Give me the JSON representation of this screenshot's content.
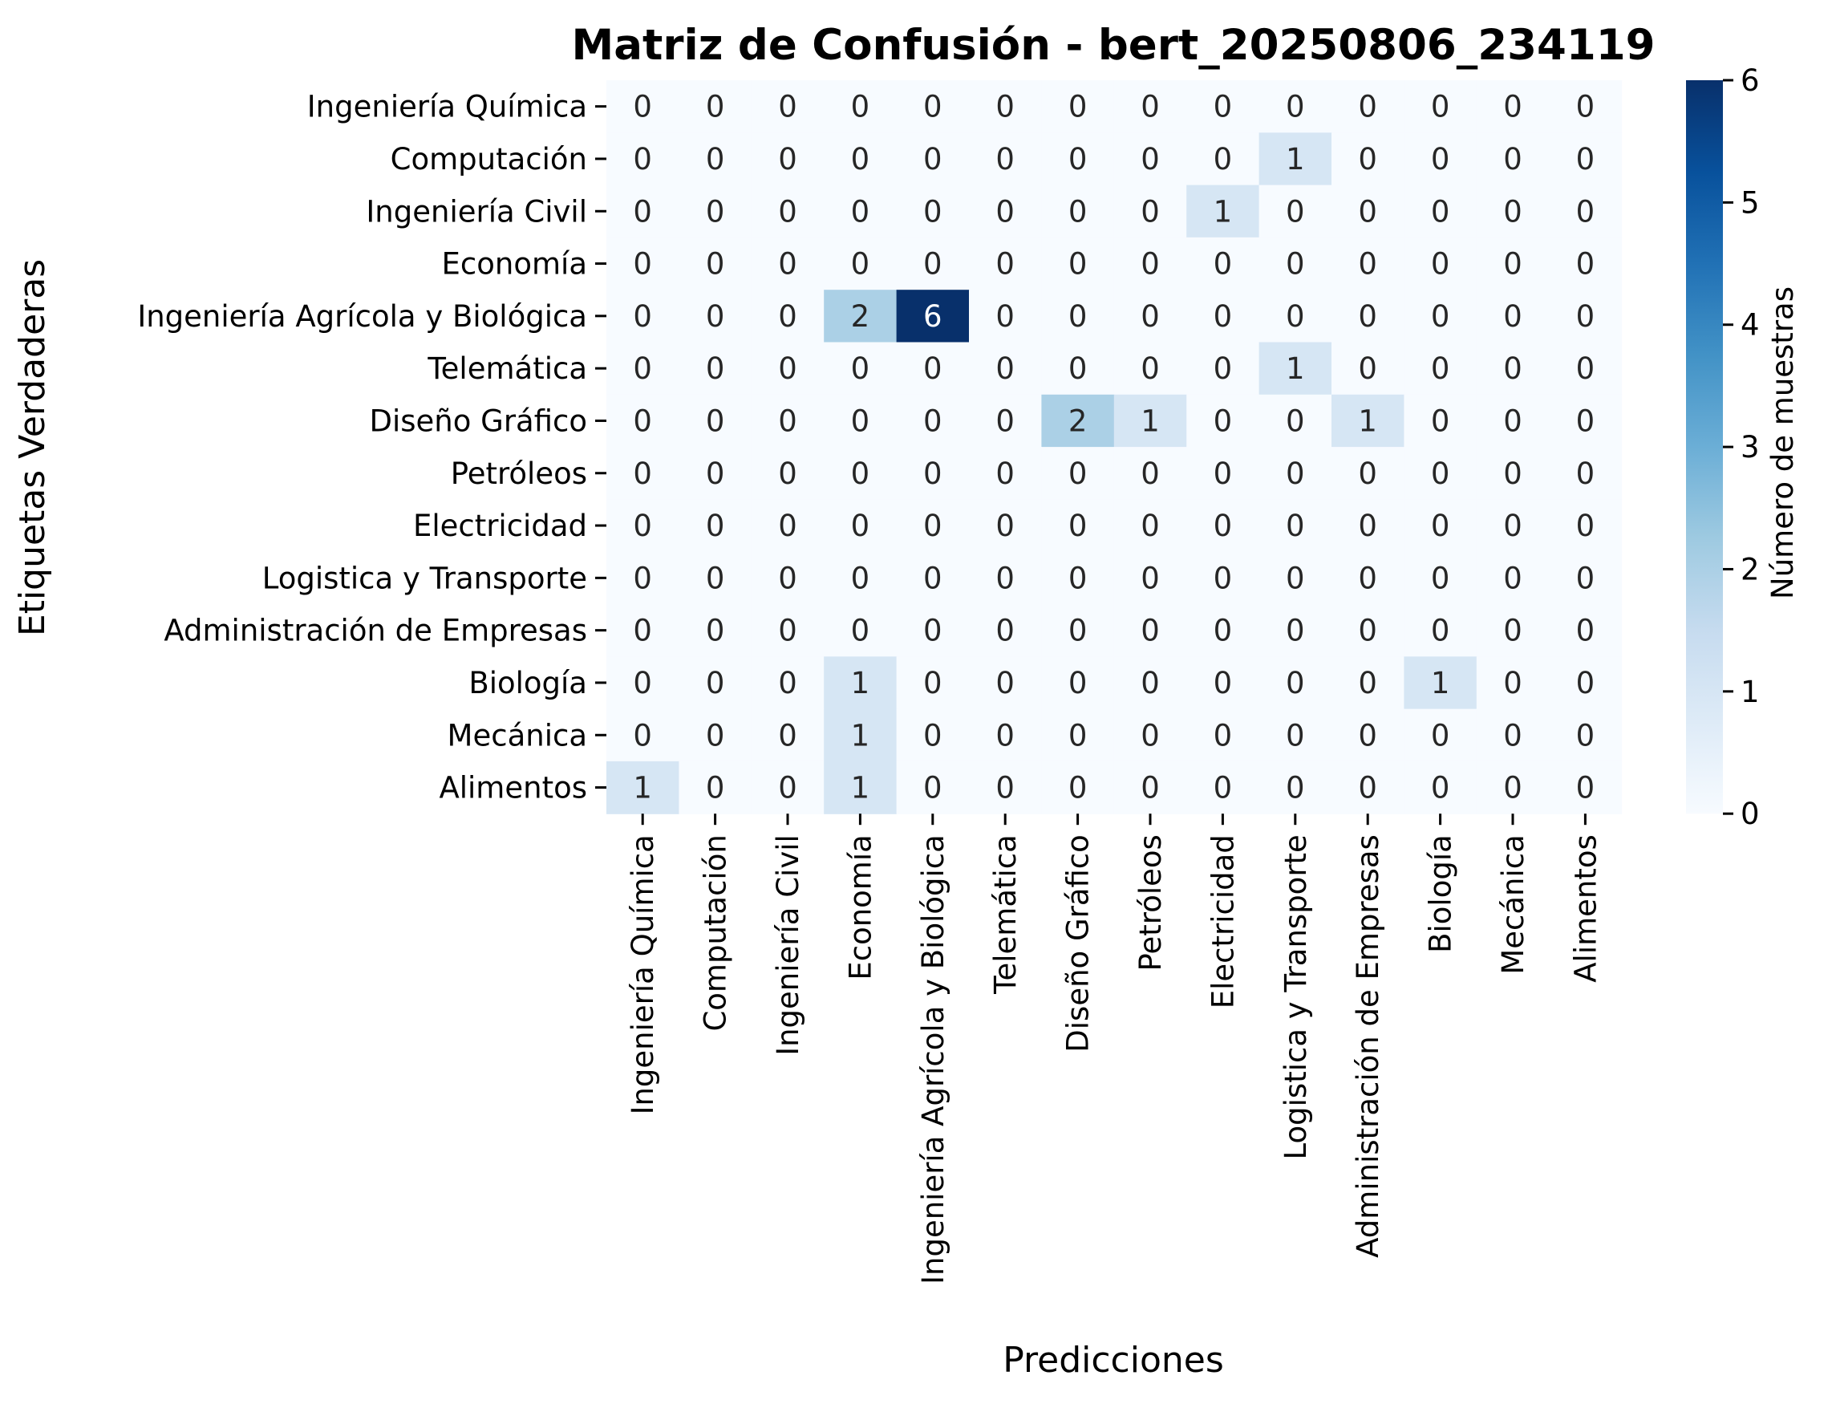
{
  "chart_data": {
    "type": "heatmap",
    "title": "Matriz de Confusión - bert_20250806_234119",
    "xlabel": "Predicciones",
    "ylabel": "Etiquetas Verdaderas",
    "colorbar_label": "Número de muestras",
    "colormap": "Blues",
    "colorbar_range": [
      0,
      6
    ],
    "colorbar_ticks": [
      "0",
      "1",
      "2",
      "3",
      "4",
      "5",
      "6"
    ],
    "row_labels": [
      "Ingeniería Química",
      "Computación",
      "Ingeniería  Civil",
      "Economía",
      "Ingeniería Agrícola y Biológica",
      "Telemática",
      "Diseño Gráfico",
      "Petróleos",
      "Electricidad",
      "Logistica y Transporte",
      "Administración de Empresas",
      "Biología",
      "Mecánica",
      "Alimentos"
    ],
    "col_labels": [
      "Ingeniería Química",
      "Computación",
      "Ingeniería  Civil",
      "Economía",
      "Ingeniería Agrícola y Biológica",
      "Telemática",
      "Diseño Gráfico",
      "Petróleos",
      "Electricidad",
      "Logistica y Transporte",
      "Administración de Empresas",
      "Biología",
      "Mecánica",
      "Alimentos"
    ],
    "matrix": [
      [
        0,
        0,
        0,
        0,
        0,
        0,
        0,
        0,
        0,
        0,
        0,
        0,
        0,
        0
      ],
      [
        0,
        0,
        0,
        0,
        0,
        0,
        0,
        0,
        0,
        1,
        0,
        0,
        0,
        0
      ],
      [
        0,
        0,
        0,
        0,
        0,
        0,
        0,
        0,
        1,
        0,
        0,
        0,
        0,
        0
      ],
      [
        0,
        0,
        0,
        0,
        0,
        0,
        0,
        0,
        0,
        0,
        0,
        0,
        0,
        0
      ],
      [
        0,
        0,
        0,
        2,
        6,
        0,
        0,
        0,
        0,
        0,
        0,
        0,
        0,
        0
      ],
      [
        0,
        0,
        0,
        0,
        0,
        0,
        0,
        0,
        0,
        1,
        0,
        0,
        0,
        0
      ],
      [
        0,
        0,
        0,
        0,
        0,
        0,
        2,
        1,
        0,
        0,
        1,
        0,
        0,
        0
      ],
      [
        0,
        0,
        0,
        0,
        0,
        0,
        0,
        0,
        0,
        0,
        0,
        0,
        0,
        0
      ],
      [
        0,
        0,
        0,
        0,
        0,
        0,
        0,
        0,
        0,
        0,
        0,
        0,
        0,
        0
      ],
      [
        0,
        0,
        0,
        0,
        0,
        0,
        0,
        0,
        0,
        0,
        0,
        0,
        0,
        0
      ],
      [
        0,
        0,
        0,
        0,
        0,
        0,
        0,
        0,
        0,
        0,
        0,
        0,
        0,
        0
      ],
      [
        0,
        0,
        0,
        1,
        0,
        0,
        0,
        0,
        0,
        0,
        0,
        1,
        0,
        0
      ],
      [
        0,
        0,
        0,
        1,
        0,
        0,
        0,
        0,
        0,
        0,
        0,
        0,
        0,
        0
      ],
      [
        1,
        0,
        0,
        1,
        0,
        0,
        0,
        0,
        0,
        0,
        0,
        0,
        0,
        0
      ]
    ]
  }
}
